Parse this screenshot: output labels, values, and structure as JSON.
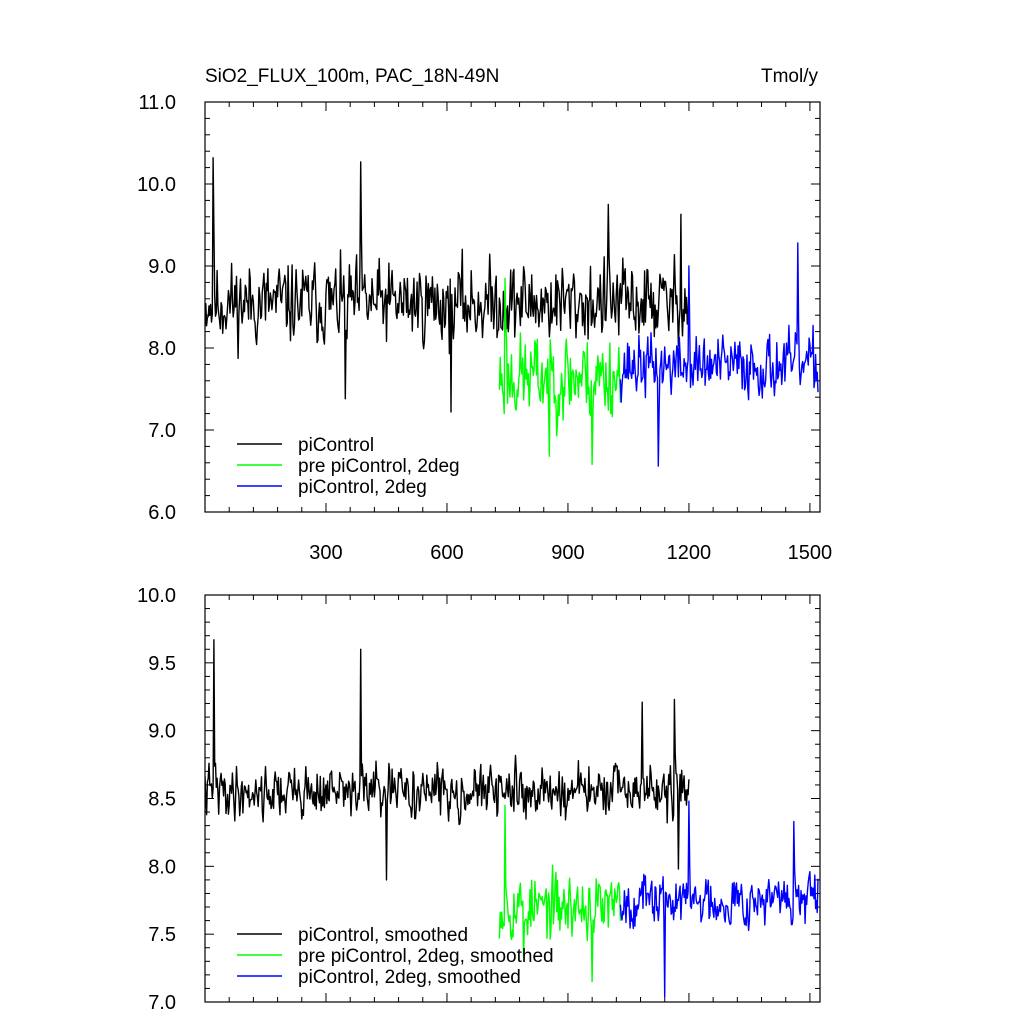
{
  "chart_data": [
    {
      "type": "line",
      "title": "SiO2_FLUX_100m, PAC_18N-49N",
      "units": "Tmol/y",
      "xlabel": "",
      "ylabel": "",
      "xlim": [
        0,
        1525
      ],
      "ylim": [
        6.0,
        11.0
      ],
      "xticks": [
        300,
        600,
        900,
        1200,
        1500
      ],
      "yticks": [
        "6.0",
        "7.0",
        "8.0",
        "9.0",
        "10.0",
        "11.0"
      ],
      "legend_position": "bottom-left",
      "series": [
        {
          "name": "piControl",
          "color": "#000000",
          "x_start": 0,
          "x_end": 1200,
          "base": 8.55,
          "amp": 0.42,
          "trend": 0.0,
          "seed": 11,
          "spikes": [
            [
              20,
              10.32
            ],
            [
              387,
              10.27
            ],
            [
              1000,
              9.75
            ],
            [
              1180,
              9.63
            ],
            [
              348,
              7.38
            ],
            [
              610,
              7.22
            ]
          ]
        },
        {
          "name": "pre piControl, 2deg",
          "color": "#00ff00",
          "x_start": 730,
          "x_end": 1030,
          "base": 7.65,
          "amp": 0.45,
          "trend": 0.0,
          "seed": 23,
          "spikes": [
            [
              745,
              8.85
            ],
            [
              960,
              6.58
            ],
            [
              855,
              6.68
            ]
          ]
        },
        {
          "name": "piControl, 2deg",
          "color": "#0000ff",
          "x_start": 1030,
          "x_end": 1520,
          "base": 7.78,
          "amp": 0.32,
          "trend": 0.0,
          "seed": 37,
          "spikes": [
            [
              1470,
              9.28
            ],
            [
              1125,
              6.56
            ],
            [
              1200,
              9.0
            ]
          ]
        }
      ]
    },
    {
      "type": "line",
      "title": "",
      "xlabel": "",
      "ylabel": "",
      "xlim": [
        0,
        1525
      ],
      "ylim": [
        7.0,
        10.0
      ],
      "xticks": [
        300,
        600,
        900,
        1200,
        1500
      ],
      "yticks": [
        "7.0",
        "7.5",
        "8.0",
        "8.5",
        "9.0",
        "9.5",
        "10.0"
      ],
      "legend_position": "bottom-left",
      "series": [
        {
          "name": "piControl, smoothed",
          "color": "#000000",
          "x_start": 0,
          "x_end": 1200,
          "base": 8.55,
          "amp": 0.16,
          "trend": 0.0,
          "seed": 41,
          "spikes": [
            [
              22,
              9.67
            ],
            [
              387,
              9.6
            ],
            [
              1085,
              9.21
            ],
            [
              1165,
              9.23
            ],
            [
              450,
              7.9
            ],
            [
              1175,
              7.98
            ]
          ]
        },
        {
          "name": "pre piControl, 2deg, smoothed",
          "color": "#00ff00",
          "x_start": 730,
          "x_end": 1030,
          "base": 7.7,
          "amp": 0.2,
          "trend": 0.0,
          "seed": 53,
          "spikes": [
            [
              745,
              8.45
            ],
            [
              960,
              7.15
            ],
            [
              790,
              7.33
            ]
          ]
        },
        {
          "name": "piControl, 2deg, smoothed",
          "color": "#0000ff",
          "x_start": 1030,
          "x_end": 1520,
          "base": 7.75,
          "amp": 0.16,
          "trend": 0.0,
          "seed": 67,
          "spikes": [
            [
              1200,
              8.48
            ],
            [
              1140,
              7.04
            ],
            [
              1460,
              8.33
            ]
          ]
        }
      ]
    }
  ]
}
